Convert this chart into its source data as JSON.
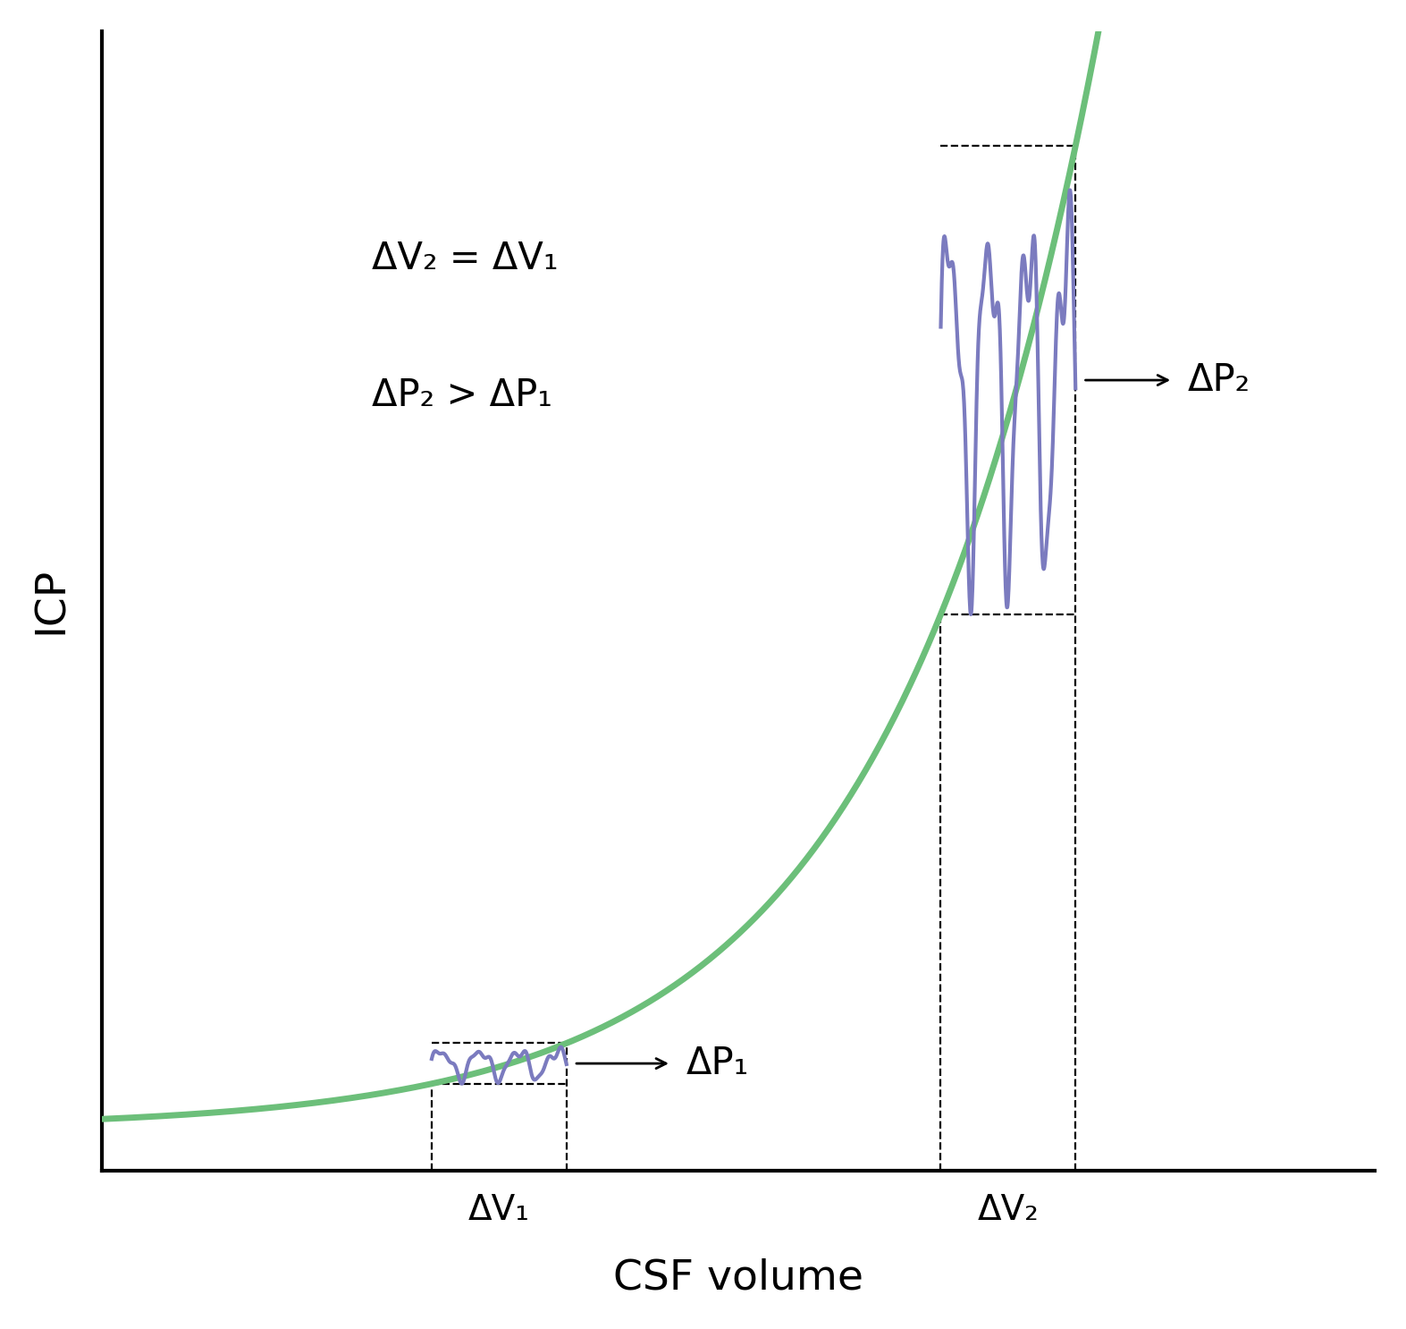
{
  "background_color": "#ffffff",
  "curve_color": "#6cbf7a",
  "curve_linewidth": 5.0,
  "wiggle_color": "#7b7bbf",
  "wiggle_linewidth": 3.0,
  "dashed_color": "#000000",
  "xlabel": "CSF volume",
  "ylabel": "ICP",
  "xlabel_fontsize": 34,
  "ylabel_fontsize": 34,
  "annotation_fontsize": 30,
  "tick_label_fontsize": 28,
  "equation_line1": "ΔV₂ = ΔV₁",
  "equation_line2": "ΔP₂ > ΔP₁",
  "dv1_label": "ΔV₁",
  "dv2_label": "ΔV₂",
  "dp1_label": "ΔP₁",
  "dp2_label": "ΔP₂",
  "curve_a": 0.08,
  "curve_b": 0.72,
  "curve_c": 0.45,
  "v1_start": 2.2,
  "v1_end": 3.1,
  "v2_start": 5.6,
  "v2_end": 6.5,
  "xlim": [
    0,
    8.5
  ],
  "ylim": [
    0,
    10
  ],
  "eq_x": 1.8,
  "eq_y1": 8.0,
  "eq_y2": 6.8
}
